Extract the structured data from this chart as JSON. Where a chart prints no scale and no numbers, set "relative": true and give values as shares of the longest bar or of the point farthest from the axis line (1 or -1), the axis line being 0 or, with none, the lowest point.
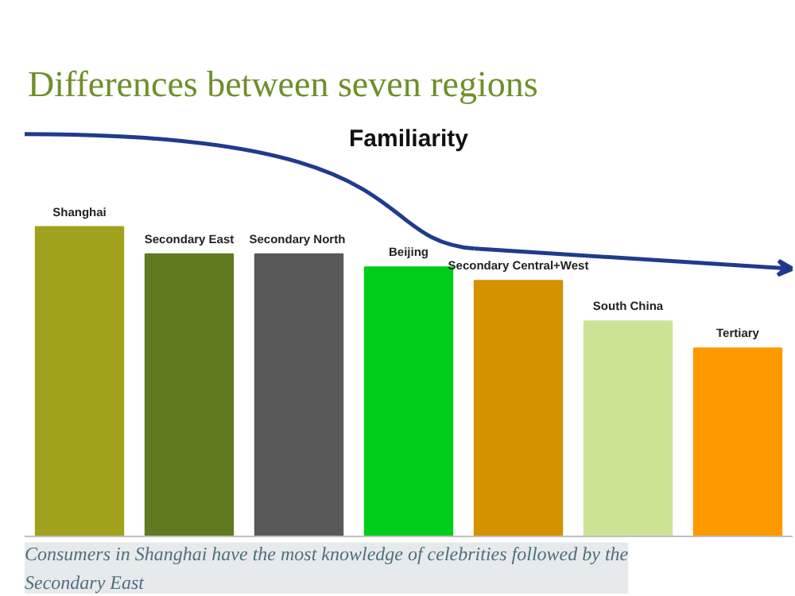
{
  "chart_data": {
    "type": "bar",
    "title": "Differences between seven regions",
    "categories": [
      "Shanghai",
      "Secondary East",
      "Secondary  North",
      "Beijing",
      "Secondary Central+West",
      "South China",
      "Tertiary"
    ],
    "values": [
      1,
      0.912,
      0.912,
      0.87,
      0.826,
      0.695,
      0.608
    ],
    "colors": [
      "#a0a21e",
      "#607a22",
      "#595959",
      "#00cc1a",
      "#d49200",
      "#cce396",
      "#ff9900"
    ],
    "relative": true,
    "grid": false,
    "annotations": [
      "Familiarity",
      "Consumers in Shanghai have the most knowledge of celebrities followed by the Secondary East"
    ]
  }
}
